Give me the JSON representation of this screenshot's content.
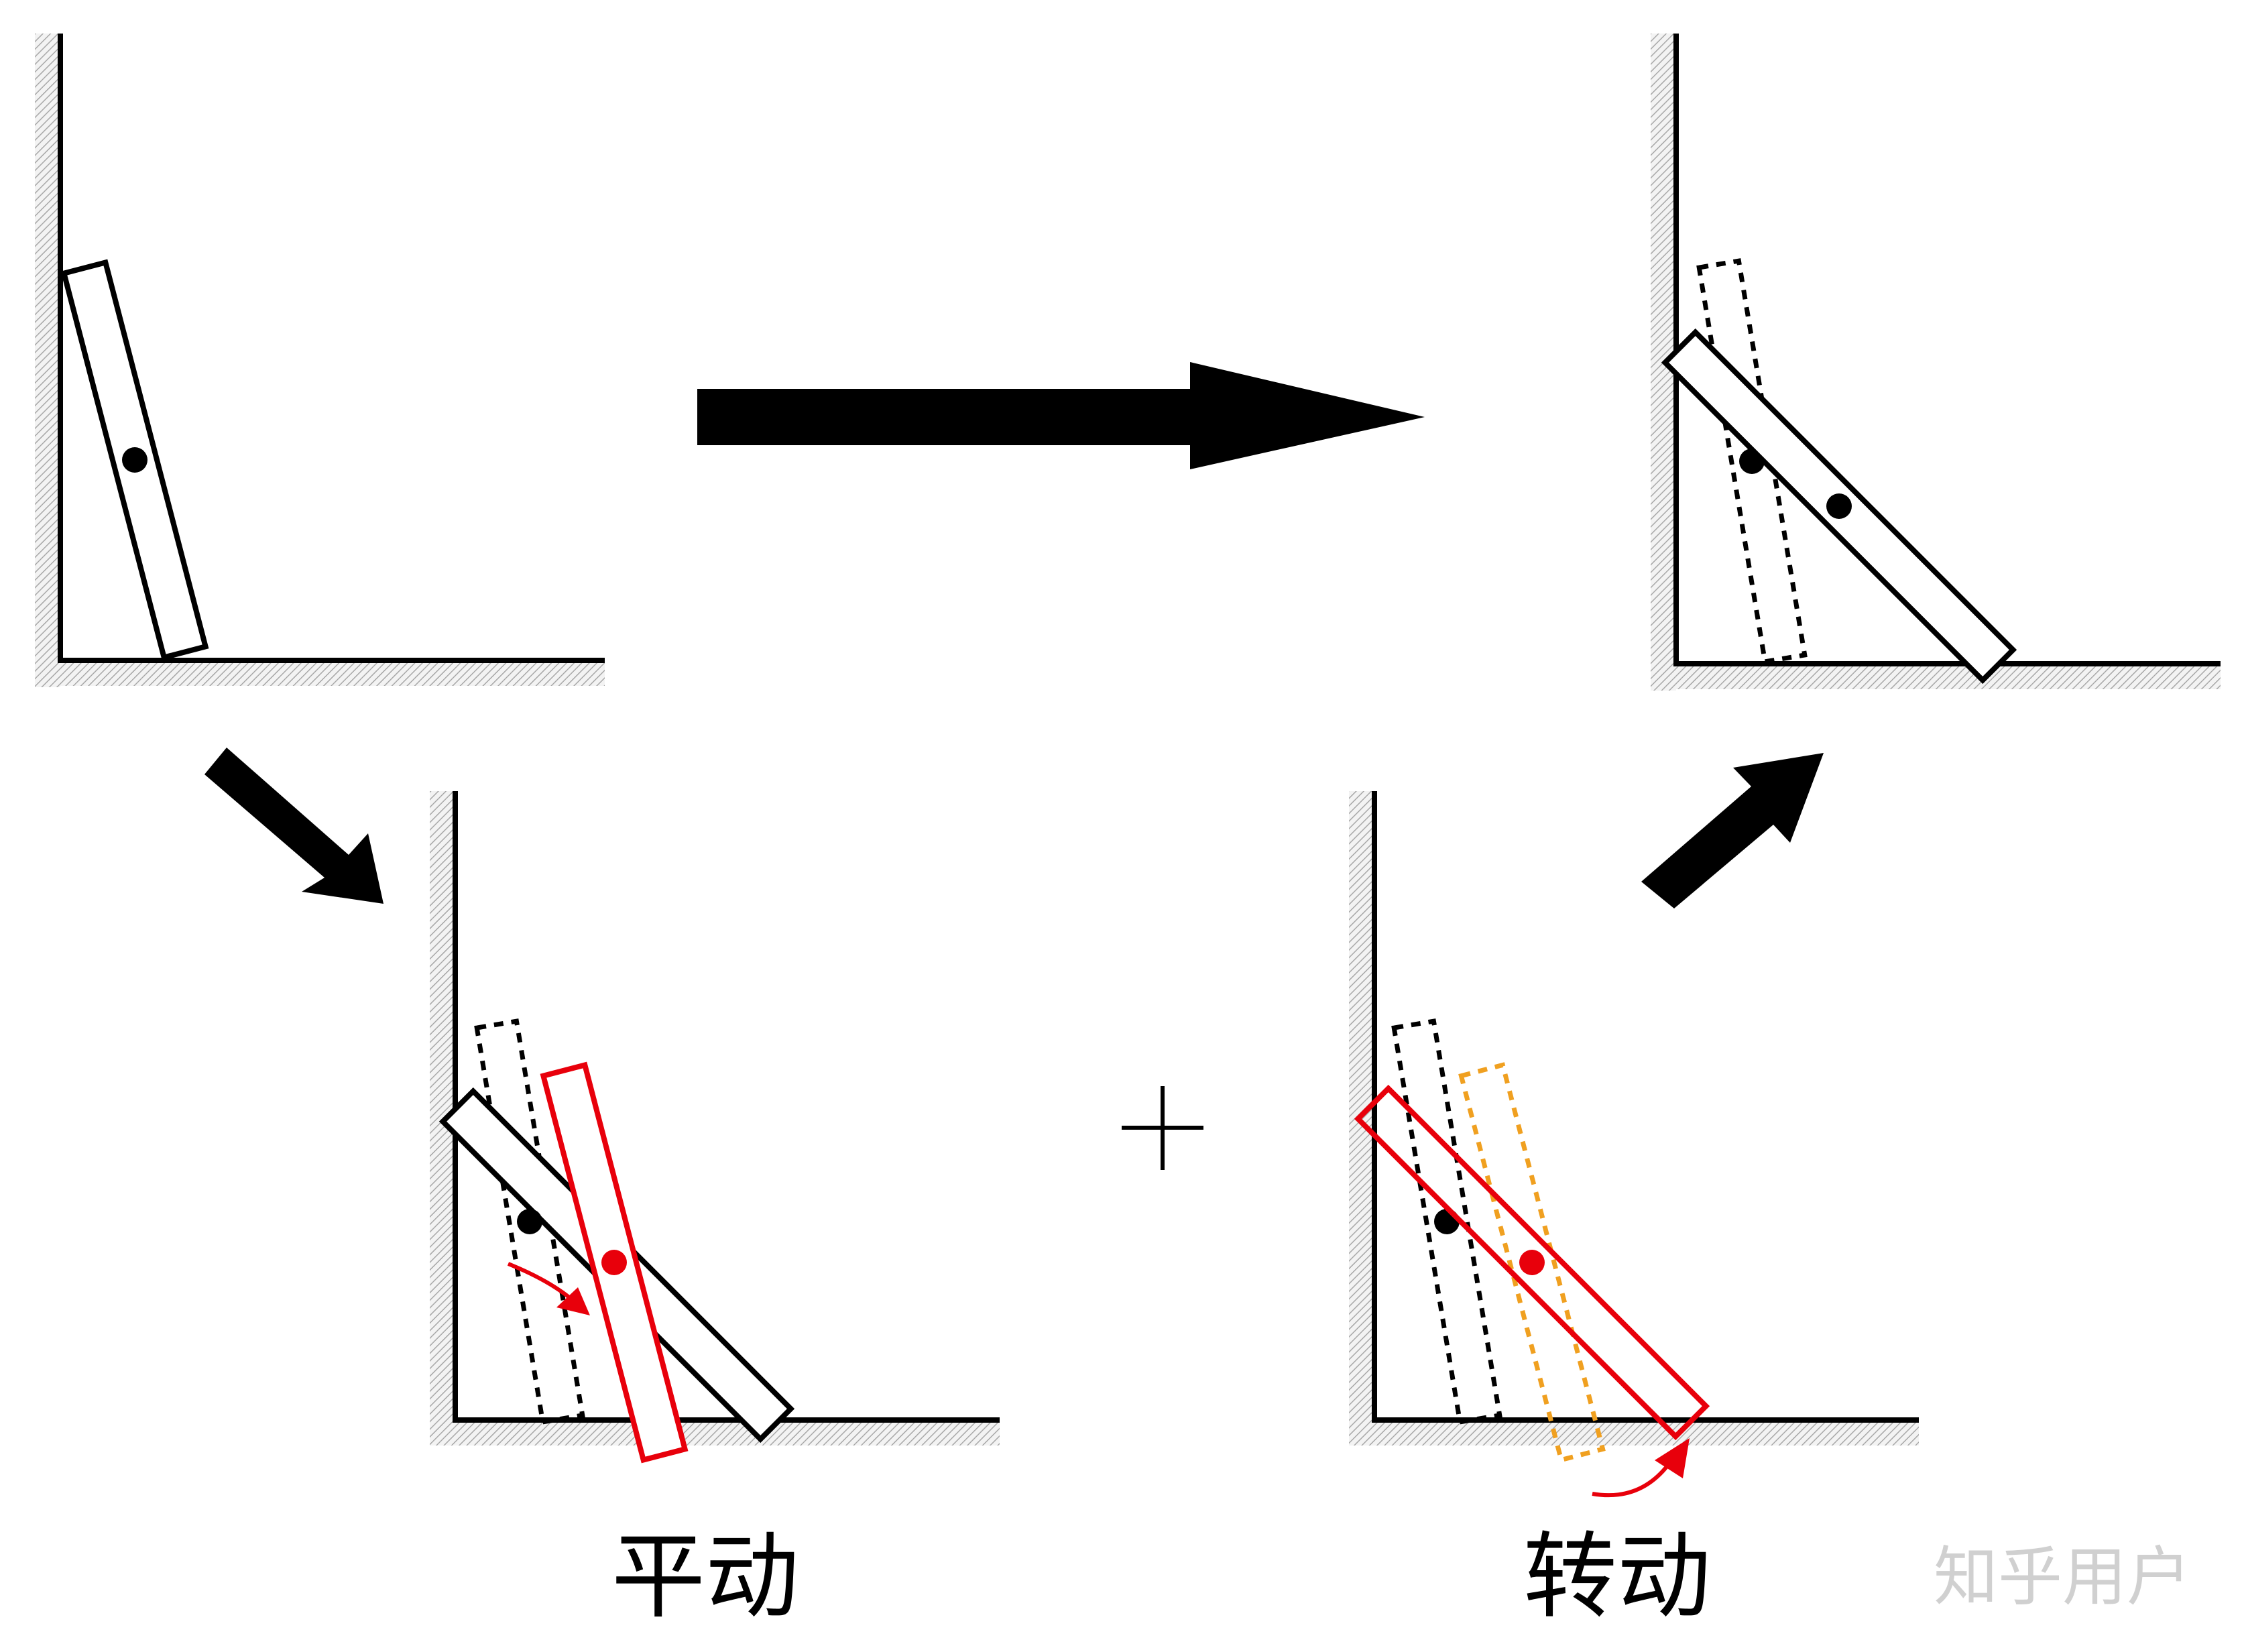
{
  "labels": {
    "translation": "平动",
    "rotation": "转动",
    "plus": "+"
  },
  "watermark": "知乎用户",
  "colors": {
    "stroke": "#000000",
    "highlight": "#e8000b",
    "ghost_orange": "#f0a020",
    "hatch": "#b0b0b0",
    "background": "#ffffff"
  },
  "panels": [
    {
      "id": "initial",
      "description_marks": [
        "wall",
        "floor",
        "rod",
        "center-of-mass"
      ]
    },
    {
      "id": "final",
      "description_marks": [
        "wall",
        "floor",
        "rod-initial-dashed",
        "rod-final"
      ]
    },
    {
      "id": "translation",
      "description_marks": [
        "wall",
        "floor",
        "rod-initial-dashed",
        "rod-final",
        "rod-translated-red",
        "translation-arrow"
      ]
    },
    {
      "id": "rotation",
      "description_marks": [
        "wall",
        "floor",
        "rod-initial-dashed",
        "rod-translated-orange",
        "rod-rotated-red",
        "rotation-arrow"
      ]
    }
  ]
}
